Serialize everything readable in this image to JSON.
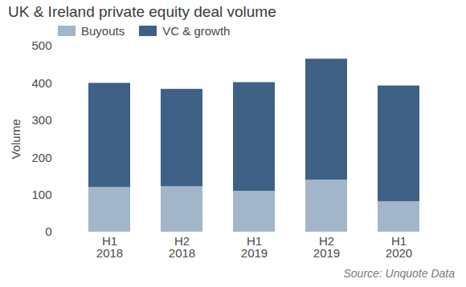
{
  "chart_data": {
    "type": "bar",
    "title": "UK & Ireland private equity deal volume",
    "caption": "Source: Unquote Data",
    "y_label": "Volume",
    "categories": [
      "H1 2018",
      "H2 2018",
      "H1 2019",
      "H2 2019",
      "H1 2020"
    ],
    "series": [
      {
        "name": "Buyouts",
        "color": "#a3b5c8",
        "values": [
          120,
          122,
          110,
          140,
          82
        ]
      },
      {
        "name": "VC & growth",
        "color": "#3e6185",
        "values": [
          280,
          262,
          292,
          325,
          311
        ]
      }
    ],
    "stacked": true,
    "ylim": [
      0,
      500
    ],
    "yticks": [
      0,
      100,
      200,
      300,
      400,
      500
    ],
    "grid": false,
    "legend": "top-left"
  }
}
